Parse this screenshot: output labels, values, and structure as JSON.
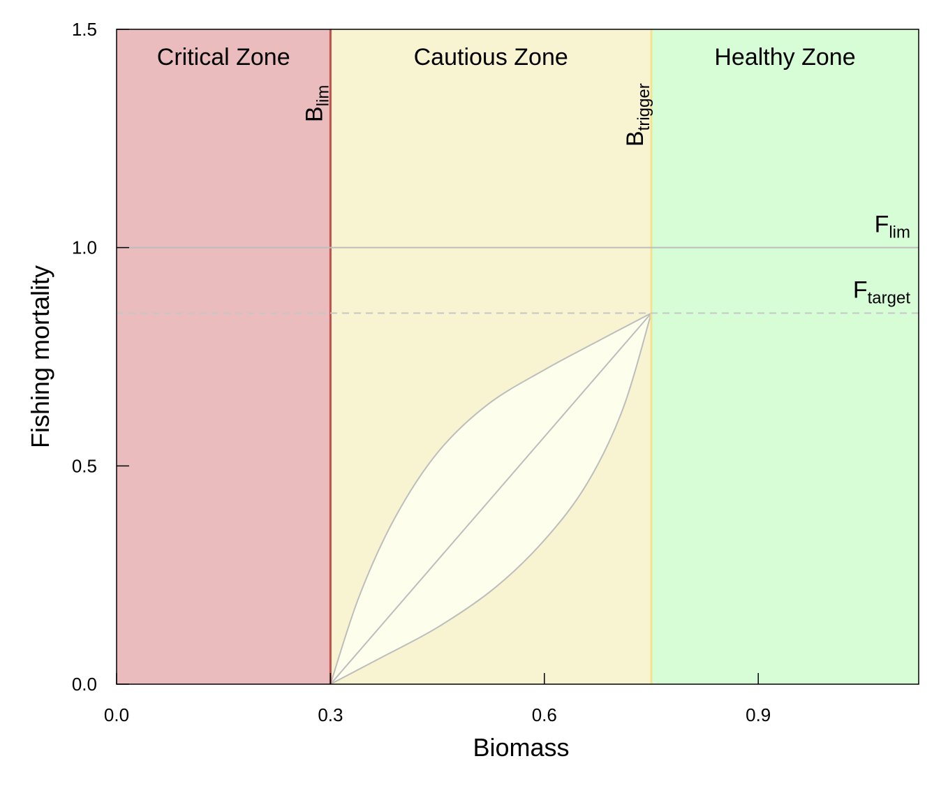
{
  "chart_data": {
    "type": "area",
    "title": "",
    "xlabel": "Biomass",
    "ylabel": "Fishing mortality",
    "xlim": [
      0,
      1.125
    ],
    "ylim": [
      0,
      1.5
    ],
    "x_ticks": [
      0.0,
      0.3,
      0.6,
      0.9
    ],
    "x_tick_labels": [
      "0.0",
      "0.3",
      "0.6",
      "0.9"
    ],
    "y_ticks": [
      0.0,
      0.5,
      1.0,
      1.5
    ],
    "y_tick_labels": [
      "0.0",
      "0.5",
      "1.0",
      "1.5"
    ],
    "grid": false,
    "zones": [
      {
        "name": "Critical Zone",
        "x_from": 0.0,
        "x_to": 0.3,
        "color": "#eabcbd"
      },
      {
        "name": "Cautious Zone",
        "x_from": 0.3,
        "x_to": 0.75,
        "color": "#f8f3d0"
      },
      {
        "name": "Healthy Zone",
        "x_from": 0.75,
        "x_to": 1.125,
        "color": "#d7fdd6"
      }
    ],
    "reference_lines": [
      {
        "id": "blim",
        "orientation": "vertical",
        "value": 0.3,
        "label_main": "B",
        "label_sub": "lim",
        "color": "#c0504d"
      },
      {
        "id": "btrigger",
        "orientation": "vertical",
        "value": 0.75,
        "label_main": "B",
        "label_sub": "trigger",
        "color": "#f3e38f"
      },
      {
        "id": "flim",
        "orientation": "horizontal",
        "value": 1.0,
        "label_main": "F",
        "label_sub": "lim",
        "color": "#bdbdbd",
        "dashed": false
      },
      {
        "id": "ftarget",
        "orientation": "horizontal",
        "value": 0.85,
        "label_main": "F",
        "label_sub": "target",
        "color": "#c6c6c6",
        "dashed": true
      }
    ],
    "harvest_control_rule": {
      "start": [
        0.3,
        0.0
      ],
      "end": [
        0.75,
        0.85
      ],
      "fill_color": "#fefeec",
      "line_color": "#bdbdbd",
      "series": [
        {
          "x": [
            0.3,
            0.34,
            0.39,
            0.45,
            0.52,
            0.6,
            0.68,
            0.75
          ],
          "y": [
            0.0,
            0.2,
            0.38,
            0.53,
            0.64,
            0.72,
            0.79,
            0.85
          ]
        },
        {
          "x": [
            0.3,
            0.75
          ],
          "y": [
            0.0,
            0.85
          ]
        },
        {
          "x": [
            0.3,
            0.37,
            0.45,
            0.53,
            0.6,
            0.66,
            0.71,
            0.75
          ],
          "y": [
            0.0,
            0.06,
            0.13,
            0.22,
            0.33,
            0.46,
            0.63,
            0.85
          ]
        }
      ]
    }
  }
}
